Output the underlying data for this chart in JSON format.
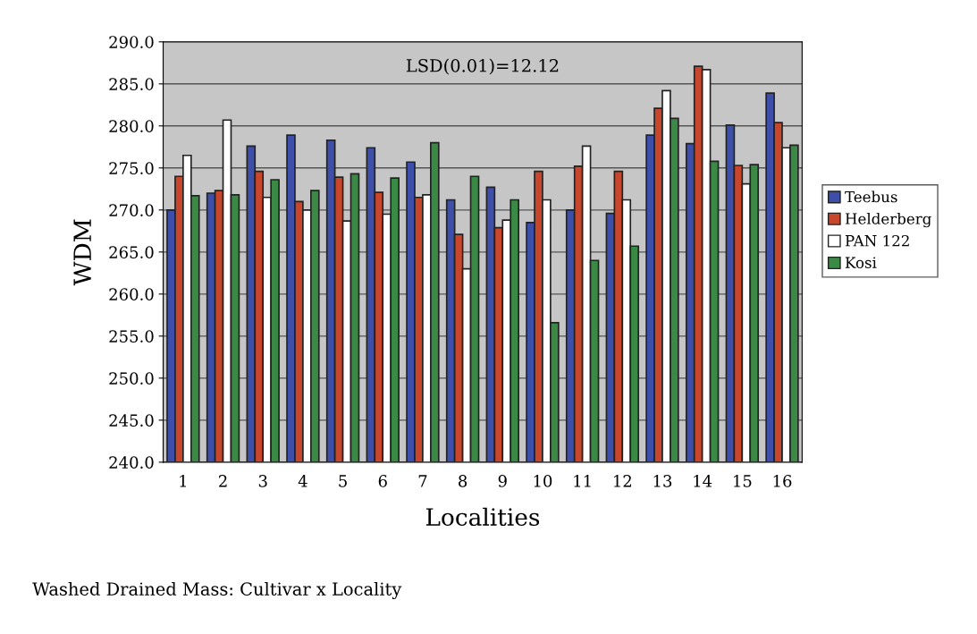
{
  "chart_data": {
    "type": "bar",
    "xlabel": "Localities",
    "ylabel": "WDM",
    "categories": [
      "1",
      "2",
      "3",
      "4",
      "5",
      "6",
      "7",
      "8",
      "9",
      "10",
      "11",
      "12",
      "13",
      "14",
      "15",
      "16"
    ],
    "series": [
      {
        "name": "Teebus",
        "color": "#3d4fa8",
        "values": [
          270.0,
          272.0,
          277.6,
          278.9,
          278.3,
          277.4,
          275.7,
          271.2,
          272.7,
          268.5,
          270.0,
          269.6,
          278.9,
          277.9,
          280.1,
          283.9
        ]
      },
      {
        "name": "Helderberg",
        "color": "#c8472c",
        "values": [
          274.0,
          272.3,
          274.6,
          271.0,
          273.9,
          272.1,
          271.5,
          267.1,
          267.9,
          274.6,
          275.2,
          274.6,
          282.1,
          287.1,
          275.3,
          280.4
        ]
      },
      {
        "name": "PAN 122",
        "color": "#ffffff",
        "values": [
          276.5,
          280.7,
          271.5,
          270.0,
          268.7,
          269.5,
          271.8,
          263.0,
          268.8,
          271.2,
          277.6,
          271.2,
          284.2,
          286.7,
          273.1,
          277.4
        ]
      },
      {
        "name": "Kosi",
        "color": "#3a8a45",
        "values": [
          271.7,
          271.8,
          273.6,
          272.3,
          274.3,
          273.8,
          278.0,
          274.0,
          271.2,
          256.6,
          264.0,
          265.7,
          280.9,
          275.8,
          275.4,
          277.7
        ]
      }
    ],
    "ylim": [
      240,
      290
    ],
    "yticks": [
      {
        "value": 240,
        "label": "240.0"
      },
      {
        "value": 245,
        "label": "245.0"
      },
      {
        "value": 250,
        "label": "250.0"
      },
      {
        "value": 255,
        "label": "255.0"
      },
      {
        "value": 260,
        "label": "260.0"
      },
      {
        "value": 265,
        "label": "265.0"
      },
      {
        "value": 270,
        "label": "270.0"
      },
      {
        "value": 275,
        "label": "275.0"
      },
      {
        "value": 280,
        "label": "280.0"
      },
      {
        "value": 285,
        "label": "285.0"
      },
      {
        "value": 290,
        "label": "290.0"
      }
    ],
    "grid": "y",
    "legend": "right",
    "annotations": [
      "LSD(0.01)=12.12",
      "Washed Drained Mass: Cultivar x Locality"
    ]
  }
}
